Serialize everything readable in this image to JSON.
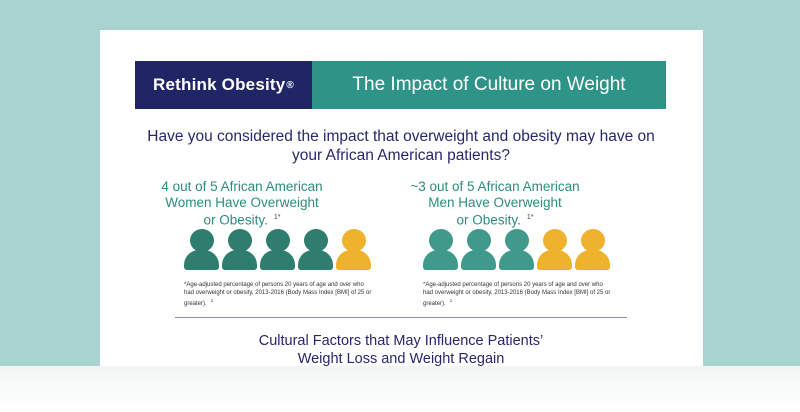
{
  "banner": {
    "brand": "Rethink Obesity",
    "brand_mark": "®",
    "title": "The Impact of Culture on Weight"
  },
  "question": "Have you considered the impact that overweight and obesity may have on your African American patients?",
  "women": {
    "heading_line1": "4 out of 5 African American",
    "heading_line2": "Women Have Overweight",
    "heading_line3": "or Obesity.",
    "ref": "1*",
    "highlighted": 4,
    "total": 5,
    "footnote": "*Age-adjusted percentage of persons 20 years of age and over who had overweight or obesity, 2013-2016 (Body Mass Index [BMI] of 25 or greater).",
    "footnote_ref": "1"
  },
  "men": {
    "heading_line1": "~3 out of 5 African American",
    "heading_line2": "Men Have Overweight",
    "heading_line3": "or Obesity.",
    "ref": "1*",
    "highlighted": 3,
    "total": 5,
    "footnote": "*Age-adjusted percentage of persons 20 years of age and over who had overweight or obesity, 2013-2016 (Body Mass Index [BMI] of 25 or greater).",
    "footnote_ref": "1"
  },
  "section_title_line1": "Cultural Factors that May Influence Patients’",
  "section_title_line2": "Weight Loss and Weight Regain",
  "colors": {
    "navy": "#1f2565",
    "teal": "#2e9488",
    "women_person": "#2e7d6e",
    "men_person": "#3f9a8c",
    "other_person": "#efb22d",
    "background": "#a9d3d1"
  },
  "icons": {
    "person": "person-icon"
  }
}
